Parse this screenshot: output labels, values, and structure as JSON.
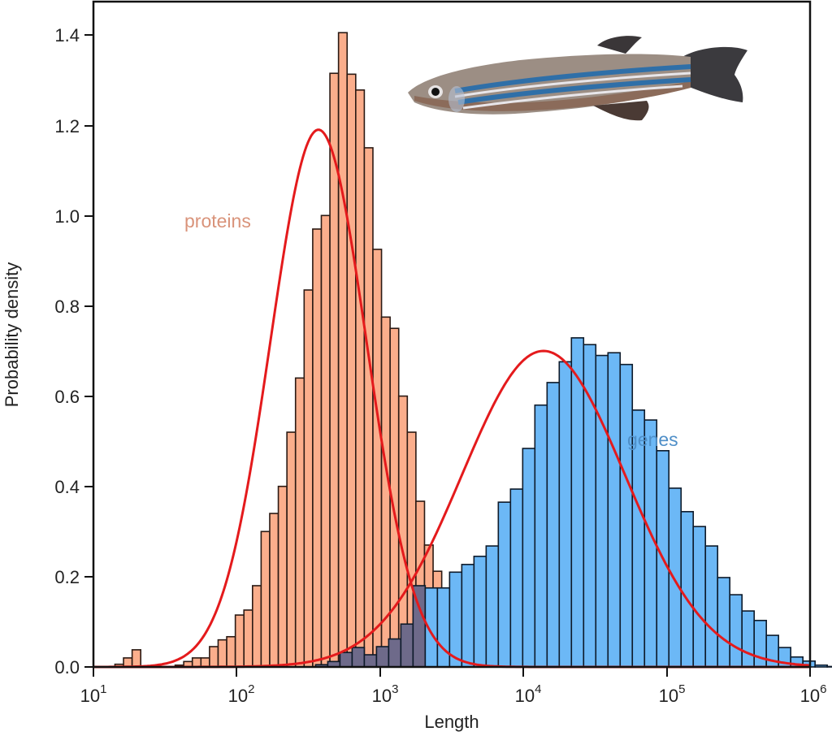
{
  "chart_data": {
    "type": "bar",
    "title": "",
    "xlabel": "Length",
    "ylabel": "Probability density",
    "xscale": "log10",
    "xlim_log10": [
      1,
      6
    ],
    "ylim": [
      0,
      1.47
    ],
    "yticks": [
      0.0,
      0.2,
      0.4,
      0.6,
      0.8,
      1.0,
      1.2,
      1.4
    ],
    "ytick_labels": [
      "0.0",
      "0.2",
      "0.4",
      "0.6",
      "0.8",
      "1.0",
      "1.2",
      "1.4"
    ],
    "xticks_log10": [
      1,
      2,
      3,
      4,
      5,
      6
    ],
    "xtick_labels": [
      {
        "base": "10",
        "exp": "1"
      },
      {
        "base": "10",
        "exp": "2"
      },
      {
        "base": "10",
        "exp": "3"
      },
      {
        "base": "10",
        "exp": "4"
      },
      {
        "base": "10",
        "exp": "5"
      },
      {
        "base": "10",
        "exp": "6"
      }
    ],
    "grid": false,
    "annotations": [
      {
        "text": "proteins",
        "series": "proteins",
        "color": "#d9937a"
      },
      {
        "text": "genes",
        "series": "genes",
        "color": "#4f8fc8"
      }
    ],
    "image_inset": "zebrafish photo (top-right)",
    "series": [
      {
        "name": "proteins",
        "kind": "histogram",
        "color": "#fbae8c",
        "edge_color": "#2b1a14",
        "bin_width_log10": 0.06,
        "bin_start_log10": 1.15,
        "values": [
          0.006,
          0.02,
          0.038,
          0.002,
          0.0,
          0.0,
          0.0,
          0.004,
          0.012,
          0.02,
          0.02,
          0.045,
          0.06,
          0.067,
          0.115,
          0.126,
          0.18,
          0.3,
          0.34,
          0.4,
          0.52,
          0.64,
          0.835,
          0.97,
          1.0,
          1.315,
          1.405,
          1.313,
          1.278,
          1.15,
          0.925,
          0.775,
          0.75,
          0.6,
          0.52,
          0.367,
          0.27,
          0.212,
          0.16,
          0.09,
          0.05,
          0.03,
          0.015,
          0.008,
          0.004,
          0.002
        ]
      },
      {
        "name": "genes",
        "kind": "histogram",
        "color": "#6cb8f6",
        "edge_color": "#0d1a2a",
        "bin_width_log10": 0.085,
        "bin_start_log10": 2.55,
        "values": [
          0.005,
          0.012,
          0.032,
          0.043,
          0.027,
          0.045,
          0.062,
          0.095,
          0.18,
          0.175,
          0.175,
          0.21,
          0.227,
          0.245,
          0.268,
          0.365,
          0.394,
          0.484,
          0.58,
          0.63,
          0.676,
          0.729,
          0.714,
          0.69,
          0.696,
          0.67,
          0.569,
          0.547,
          0.479,
          0.396,
          0.344,
          0.311,
          0.268,
          0.198,
          0.16,
          0.124,
          0.103,
          0.07,
          0.043,
          0.022,
          0.013,
          0.004,
          0.001
        ]
      },
      {
        "name": "proteins-fit",
        "kind": "lognormal-fit-curve",
        "color": "#e41a1c",
        "peak_log10": 2.57,
        "peak_density": 1.19,
        "sigma_log10": 0.335
      },
      {
        "name": "genes-fit",
        "kind": "lognormal-fit-curve",
        "color": "#e41a1c",
        "peak_log10": 4.14,
        "peak_density": 0.7,
        "sigma_log10": 0.57
      }
    ]
  }
}
